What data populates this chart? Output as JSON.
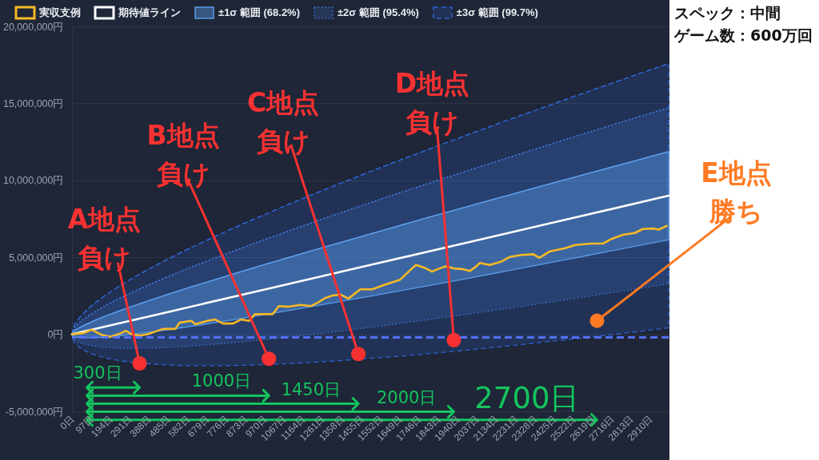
{
  "chart_data": {
    "type": "line",
    "legend": "top left",
    "grid": "y",
    "xlim": [
      0,
      3000
    ],
    "xticks": [
      {
        "value": 0,
        "label": "0日"
      },
      {
        "value": 97,
        "label": "97日"
      },
      {
        "value": 194,
        "label": "194日"
      },
      {
        "value": 291,
        "label": "291日"
      },
      {
        "value": 388,
        "label": "388日"
      },
      {
        "value": 485,
        "label": "485日"
      },
      {
        "value": 582,
        "label": "582日"
      },
      {
        "value": 679,
        "label": "679日"
      },
      {
        "value": 776,
        "label": "776日"
      },
      {
        "value": 873,
        "label": "873日"
      },
      {
        "value": 970,
        "label": "970日"
      },
      {
        "value": 1067,
        "label": "1067日"
      },
      {
        "value": 1164,
        "label": "1164日"
      },
      {
        "value": 1261,
        "label": "1261日"
      },
      {
        "value": 1358,
        "label": "1358日"
      },
      {
        "value": 1455,
        "label": "1455日"
      },
      {
        "value": 1552,
        "label": "1552日"
      },
      {
        "value": 1649,
        "label": "1649日"
      },
      {
        "value": 1746,
        "label": "1746日"
      },
      {
        "value": 1843,
        "label": "1843日"
      },
      {
        "value": 1940,
        "label": "1940日"
      },
      {
        "value": 2037,
        "label": "2037日"
      },
      {
        "value": 2134,
        "label": "2134日"
      },
      {
        "value": 2231,
        "label": "2231日"
      },
      {
        "value": 2328,
        "label": "2328日"
      },
      {
        "value": 2425,
        "label": "2425日"
      },
      {
        "value": 2522,
        "label": "2522日"
      },
      {
        "value": 2619,
        "label": "2619日"
      },
      {
        "value": 2716,
        "label": "2716日"
      },
      {
        "value": 2813,
        "label": "2813日"
      },
      {
        "value": 2910,
        "label": "2910日"
      }
    ],
    "ylim": [
      -5000000,
      20000000
    ],
    "yticks": [
      {
        "value": -5000000,
        "label": "-5,000,000円"
      },
      {
        "value": 0,
        "label": "0円"
      },
      {
        "value": 5000000,
        "label": "5,000,000円"
      },
      {
        "value": 10000000,
        "label": "10,000,000円"
      },
      {
        "value": 15000000,
        "label": "15,000,000円"
      },
      {
        "value": 20000000,
        "label": "20,000,000円"
      }
    ],
    "series": [
      {
        "name": "実収支例",
        "color": "#f7b924",
        "x": [
          0,
          60,
          100,
          130,
          150,
          190,
          250,
          270,
          300,
          340,
          380,
          420,
          460,
          520,
          540,
          600,
          620,
          680,
          720,
          760,
          810,
          850,
          890,
          920,
          970,
          1010,
          1040,
          1090,
          1150,
          1200,
          1240,
          1270,
          1310,
          1350,
          1390,
          1450,
          1510,
          1570,
          1650,
          1700,
          1730,
          1780,
          1810,
          1840,
          1880,
          1920,
          1960,
          2000,
          2030,
          2050,
          2100,
          2160,
          2200,
          2260,
          2320,
          2350,
          2400,
          2480,
          2530,
          2610,
          2670,
          2710,
          2770,
          2830,
          2870,
          2920,
          2950,
          2990
        ],
        "values": [
          0,
          90000,
          300000,
          90000,
          -40000,
          -170000,
          90000,
          230000,
          10000,
          -80000,
          10000,
          180000,
          350000,
          350000,
          750000,
          870000,
          650000,
          870000,
          960000,
          700000,
          700000,
          960000,
          870000,
          1310000,
          1310000,
          1310000,
          1830000,
          1790000,
          1910000,
          1830000,
          2090000,
          2340000,
          2520000,
          2580000,
          2320000,
          2920000,
          2920000,
          3210000,
          3550000,
          4160000,
          4500000,
          4280000,
          4070000,
          4240000,
          4420000,
          4280000,
          4240000,
          4110000,
          4380000,
          4630000,
          4500000,
          4730000,
          5020000,
          5150000,
          5200000,
          4970000,
          5370000,
          5590000,
          5800000,
          5890000,
          5890000,
          6180000,
          6460000,
          6580000,
          6840000,
          6870000,
          6800000,
          7040000
        ]
      },
      {
        "name": "期待値ライン",
        "color": "#ffffff",
        "x": [
          0,
          500,
          1000,
          1500,
          2000,
          2500,
          3000
        ],
        "values": [
          0,
          1500000,
          3000000,
          4500000,
          6000000,
          7500000,
          9000000
        ]
      },
      {
        "name": "±1σ 範囲 (68.2%)",
        "color": "#5b9ce8",
        "line_style": "solid",
        "x": [
          0,
          10,
          30,
          60,
          100,
          150,
          200,
          300,
          400,
          500,
          600,
          700,
          800,
          1000,
          1200,
          1400,
          1600,
          1800,
          2000,
          2200,
          2400,
          2600,
          2800,
          3000
        ],
        "values": [
          0,
          200000,
          380000,
          580000,
          820000,
          1090000,
          1340000,
          1800000,
          2240000,
          2670000,
          3080000,
          3480000,
          3880000,
          4650000,
          5410000,
          6150000,
          6890000,
          7620000,
          8340000,
          9050000,
          9760000,
          10460000,
          11160000,
          11860000
        ],
        "lower": [
          0,
          -140000,
          -200000,
          -220000,
          -220000,
          -190000,
          -140000,
          0,
          160000,
          330000,
          520000,
          720000,
          920000,
          1350000,
          1790000,
          2250000,
          2710000,
          3180000,
          3660000,
          4150000,
          4640000,
          5140000,
          5640000,
          6140000
        ],
        "upper": [
          0,
          200000,
          380000,
          580000,
          820000,
          1090000,
          1340000,
          1800000,
          2240000,
          2670000,
          3080000,
          3480000,
          3880000,
          4650000,
          5410000,
          6150000,
          6890000,
          7620000,
          8340000,
          9050000,
          9760000,
          10460000,
          11160000,
          11860000
        ]
      },
      {
        "name": "±2σ 範囲 (95.4%)",
        "color": "#3f78dc",
        "line_style": "dotted",
        "x": [
          0,
          10,
          30,
          60,
          100,
          150,
          200,
          300,
          400,
          500,
          600,
          700,
          800,
          1000,
          1200,
          1400,
          1600,
          1800,
          2000,
          2200,
          2400,
          2600,
          2800,
          3000
        ],
        "values": [
          0,
          360000,
          660000,
          990000,
          1340000,
          1730000,
          2080000,
          2710000,
          3290000,
          3840000,
          4360000,
          4860000,
          5350000,
          6300000,
          7220000,
          8110000,
          8980000,
          9830000,
          10670000,
          11500000,
          12320000,
          13130000,
          13930000,
          14720000
        ],
        "lower": [
          0,
          -300000,
          -480000,
          -630000,
          -740000,
          -830000,
          -880000,
          -910000,
          -890000,
          -840000,
          -760000,
          -660000,
          -550000,
          -300000,
          -20000,
          290000,
          620000,
          970000,
          1330000,
          1700000,
          2080000,
          2480000,
          2870000,
          3280000
        ],
        "upper": [
          0,
          360000,
          660000,
          990000,
          1340000,
          1730000,
          2080000,
          2710000,
          3290000,
          3840000,
          4360000,
          4860000,
          5350000,
          6300000,
          7220000,
          8110000,
          8980000,
          9830000,
          10670000,
          11500000,
          12320000,
          13130000,
          13930000,
          14720000
        ]
      },
      {
        "name": "±3σ 範囲 (99.7%)",
        "color": "#2f62d0",
        "line_style": "dashed",
        "x": [
          0,
          10,
          30,
          60,
          100,
          150,
          200,
          300,
          400,
          500,
          600,
          700,
          800,
          1000,
          1200,
          1400,
          1600,
          1800,
          2000,
          2200,
          2400,
          2600,
          2800,
          3000
        ],
        "values": [
          0,
          530000,
          950000,
          1390000,
          1870000,
          2370000,
          2820000,
          3610000,
          4330000,
          5000000,
          5640000,
          6240000,
          6830000,
          7950000,
          9030000,
          10060000,
          11070000,
          12050000,
          13010000,
          13950000,
          14870000,
          15790000,
          16690000,
          17580000
        ],
        "lower": [
          0,
          -470000,
          -770000,
          -1030000,
          -1270000,
          -1470000,
          -1620000,
          -1810000,
          -1930000,
          -2000000,
          -2040000,
          -2040000,
          -2030000,
          -1950000,
          -1830000,
          -1660000,
          -1470000,
          -1250000,
          -1010000,
          -750000,
          -470000,
          -190000,
          110000,
          420000
        ],
        "upper": [
          0,
          530000,
          950000,
          1390000,
          1870000,
          2370000,
          2820000,
          3610000,
          4330000,
          5000000,
          5640000,
          6240000,
          6830000,
          7950000,
          9030000,
          10060000,
          11070000,
          12050000,
          13010000,
          13950000,
          14870000,
          15790000,
          16690000,
          17580000
        ]
      },
      {
        "type": "scatter",
        "colors": [
          "#f73131",
          "#f73131",
          "#f73131",
          "#f73131",
          "#ff7a22"
        ],
        "x": [
          340,
          990,
          1440,
          1920,
          2640
        ],
        "values": [
          -1890000,
          -1590000,
          -1280000,
          -380000,
          880000
        ],
        "value_labels": [
          "A地点負け",
          "B地点負け",
          "C地点負け",
          "D地点負け",
          "E地点勝ち"
        ]
      }
    ],
    "ref_lines": [
      {
        "axis": "y",
        "value": -200000,
        "color": "#5470f5",
        "line_style": "dashed"
      }
    ],
    "annotations": [
      "300日",
      "1000日",
      "1450日",
      "2000日",
      "2700日",
      "スペック：中間",
      "ゲーム数：600万回"
    ]
  }
}
